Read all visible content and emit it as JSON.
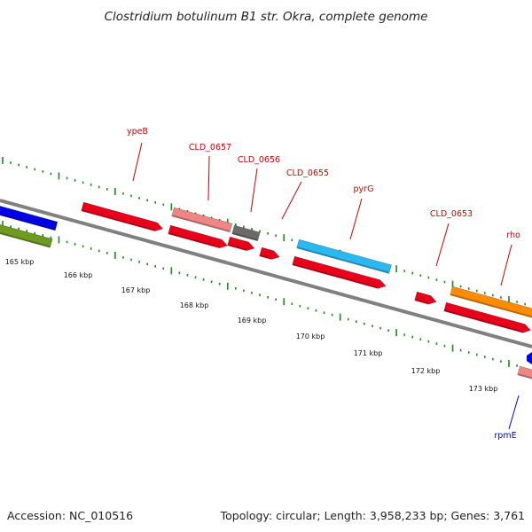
{
  "title": "Clostridium botulinum B1 str. Okra, complete genome",
  "footer": {
    "accession": "Accession: NC_010516",
    "summary": "Topology: circular; Length: 3,958,233 bp; Genes: 3,761"
  },
  "scale": {
    "labels": [
      "165 kbp",
      "166 kbp",
      "167 kbp",
      "168 kbp",
      "169 kbp",
      "170 kbp",
      "171 kbp",
      "172 kbp",
      "173 kbp"
    ]
  },
  "colors": {
    "backbone": "#808080",
    "tick": "#1a8a1a",
    "gene_red": "#e8001a",
    "gene_pink": "#ee8686",
    "gene_gray": "#6a6a6a",
    "gene_cyan": "#2ab8f0",
    "gene_orange": "#ff8c00",
    "gene_blue": "#0000e8",
    "gene_olive": "#6e9a20",
    "label_red": "#cc0000",
    "label_blue": "#0000cc"
  },
  "genes": [
    {
      "name": "ypeB",
      "color": "gene_red"
    },
    {
      "name": "CLD_0657",
      "color": "gene_pink"
    },
    {
      "name": "CLD_0656",
      "color": "gene_gray"
    },
    {
      "name": "CLD_0655",
      "color": "gene_red"
    },
    {
      "name": "pyrG",
      "color": "gene_cyan"
    },
    {
      "name": "CLD_0653",
      "color": "gene_red"
    },
    {
      "name": "rho",
      "color": "gene_orange"
    },
    {
      "name": "rpmE",
      "color": "gene_pink"
    }
  ]
}
